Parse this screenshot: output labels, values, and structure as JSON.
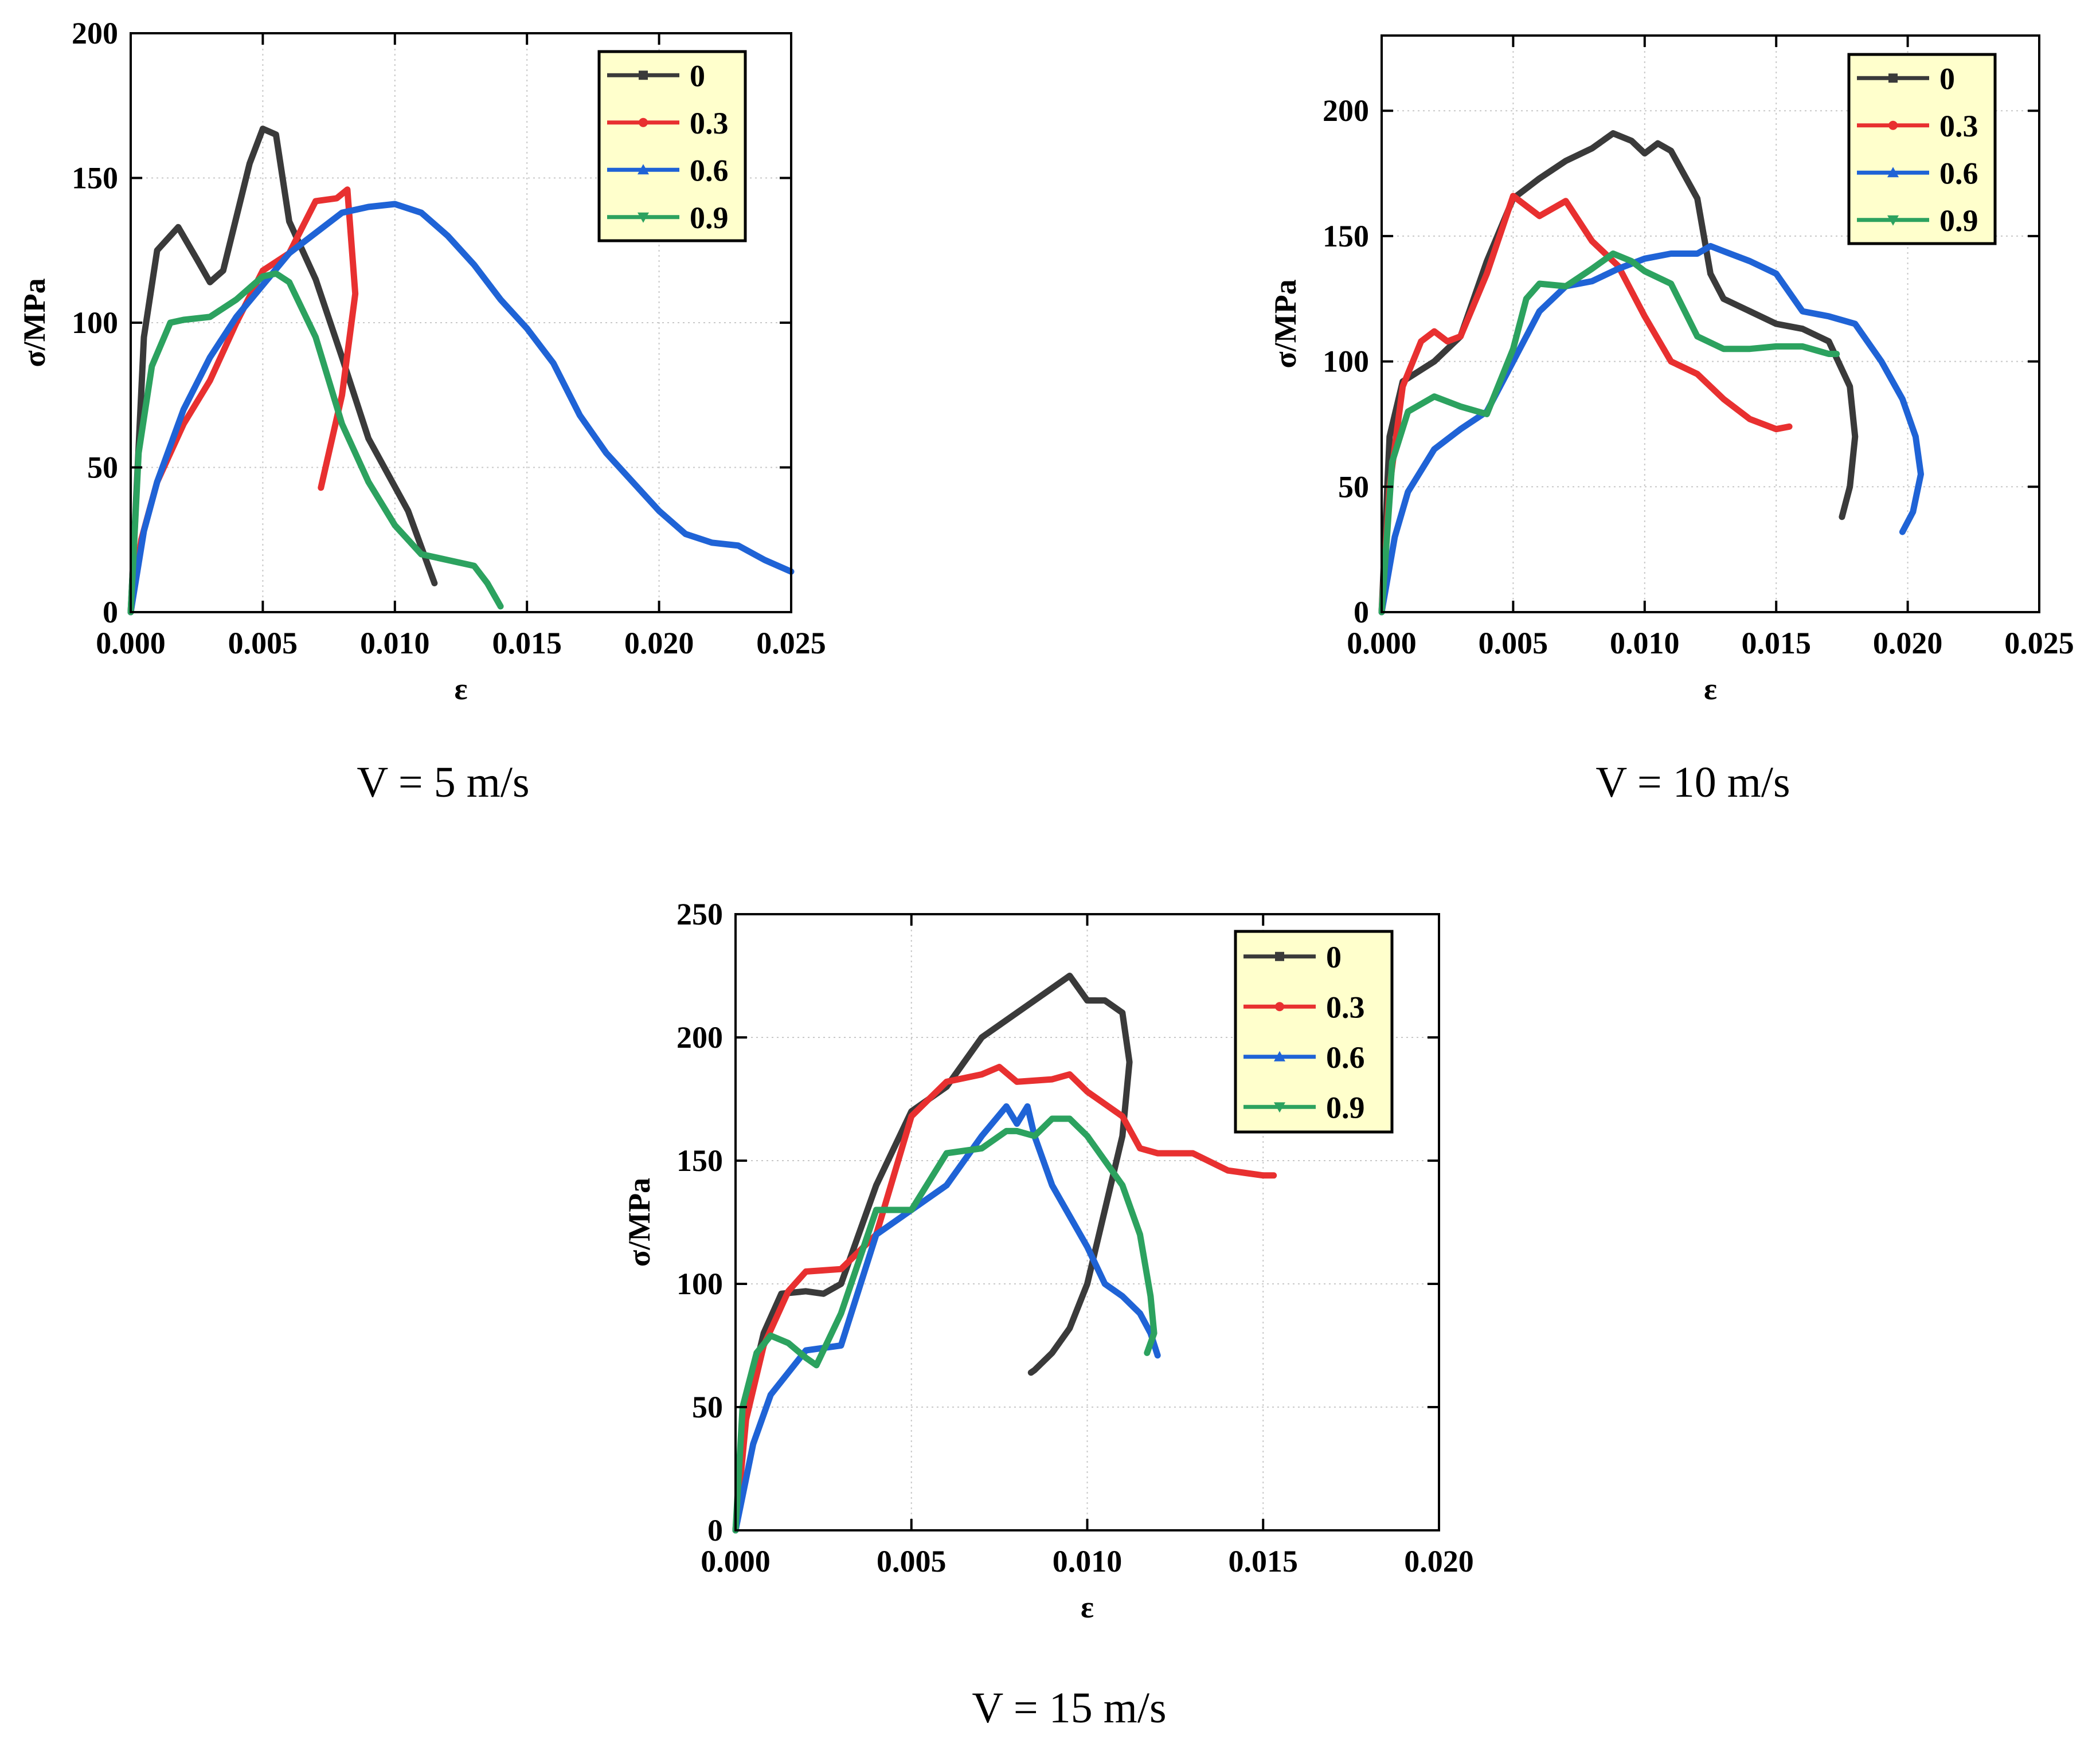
{
  "chart_data": [
    {
      "type": "line",
      "title": "",
      "caption": "V = 5 m/s",
      "xlabel": "ε",
      "ylabel": "σ/MPa",
      "xlim": [
        0,
        0.025
      ],
      "ylim": [
        0,
        200
      ],
      "xticks": [
        "0.000",
        "0.005",
        "0.010",
        "0.015",
        "0.020",
        "0.025"
      ],
      "yticks": [
        "0",
        "50",
        "100",
        "150",
        "200"
      ],
      "legend_location": "top-right",
      "series": [
        {
          "name": "0",
          "color": "#3a3a3a",
          "marker": "square",
          "x": [
            0,
            0.0005,
            0.001,
            0.0018,
            0.0025,
            0.003,
            0.0035,
            0.0045,
            0.005,
            0.0055,
            0.006,
            0.007,
            0.008,
            0.009,
            0.0105,
            0.0115
          ],
          "y": [
            0,
            95,
            125,
            133,
            122,
            114,
            118,
            155,
            167,
            165,
            135,
            115,
            88,
            60,
            35,
            10
          ]
        },
        {
          "name": "0.3",
          "color": "#e83030",
          "marker": "circle",
          "x": [
            0,
            0.0004,
            0.001,
            0.002,
            0.003,
            0.004,
            0.005,
            0.006,
            0.0065,
            0.007,
            0.0078,
            0.0082,
            0.0085,
            0.008,
            0.0075,
            0.0072
          ],
          "y": [
            0,
            25,
            45,
            65,
            80,
            100,
            118,
            124,
            133,
            142,
            143,
            146,
            110,
            75,
            55,
            43
          ]
        },
        {
          "name": "0.6",
          "color": "#1f63d6",
          "marker": "triangle-up",
          "x": [
            0,
            0.0005,
            0.001,
            0.002,
            0.003,
            0.004,
            0.005,
            0.006,
            0.007,
            0.008,
            0.009,
            0.01,
            0.011,
            0.012,
            0.013,
            0.014,
            0.015,
            0.016,
            0.017,
            0.018,
            0.019,
            0.02,
            0.021,
            0.022,
            0.023,
            0.024,
            0.025
          ],
          "y": [
            0,
            28,
            45,
            70,
            88,
            102,
            113,
            124,
            131,
            138,
            140,
            141,
            138,
            130,
            120,
            108,
            98,
            86,
            68,
            55,
            45,
            35,
            27,
            24,
            23,
            18,
            14
          ]
        },
        {
          "name": "0.9",
          "color": "#2ca25f",
          "marker": "triangle-down",
          "x": [
            0,
            0.0003,
            0.0008,
            0.0015,
            0.002,
            0.003,
            0.004,
            0.005,
            0.0055,
            0.006,
            0.007,
            0.008,
            0.009,
            0.01,
            0.011,
            0.012,
            0.013,
            0.0135,
            0.014
          ],
          "y": [
            0,
            55,
            85,
            100,
            101,
            102,
            108,
            116,
            117,
            114,
            95,
            65,
            45,
            30,
            20,
            18,
            16,
            10,
            2
          ]
        }
      ]
    },
    {
      "type": "line",
      "title": "",
      "caption": "V = 10 m/s",
      "xlabel": "ε",
      "ylabel": "σ/MPa",
      "xlim": [
        0,
        0.025
      ],
      "ylim": [
        0,
        230
      ],
      "xticks": [
        "0.000",
        "0.005",
        "0.010",
        "0.015",
        "0.020",
        "0.025"
      ],
      "yticks": [
        "0",
        "50",
        "100",
        "150",
        "200"
      ],
      "legend_location": "top-right",
      "series": [
        {
          "name": "0",
          "color": "#3a3a3a",
          "marker": "square",
          "x": [
            0,
            0.0003,
            0.0008,
            0.002,
            0.003,
            0.004,
            0.005,
            0.006,
            0.007,
            0.008,
            0.0088,
            0.0095,
            0.01,
            0.0105,
            0.011,
            0.012,
            0.0125,
            0.013,
            0.014,
            0.015,
            0.016,
            0.017,
            0.0178,
            0.018,
            0.0178,
            0.0175
          ],
          "y": [
            0,
            70,
            92,
            100,
            110,
            140,
            165,
            173,
            180,
            185,
            191,
            188,
            183,
            187,
            184,
            165,
            135,
            125,
            120,
            115,
            113,
            108,
            90,
            70,
            50,
            38
          ]
        },
        {
          "name": "0.3",
          "color": "#e83030",
          "marker": "circle",
          "x": [
            0,
            0.0003,
            0.0008,
            0.0015,
            0.002,
            0.0025,
            0.003,
            0.004,
            0.005,
            0.006,
            0.007,
            0.008,
            0.009,
            0.01,
            0.011,
            0.012,
            0.013,
            0.014,
            0.015,
            0.0155
          ],
          "y": [
            0,
            50,
            90,
            108,
            112,
            108,
            110,
            135,
            166,
            158,
            164,
            148,
            138,
            118,
            100,
            95,
            85,
            77,
            73,
            74
          ]
        },
        {
          "name": "0.6",
          "color": "#1f63d6",
          "marker": "triangle-up",
          "x": [
            0,
            0.0005,
            0.001,
            0.002,
            0.003,
            0.004,
            0.005,
            0.006,
            0.007,
            0.008,
            0.009,
            0.01,
            0.011,
            0.012,
            0.0125,
            0.013,
            0.014,
            0.015,
            0.016,
            0.017,
            0.018,
            0.019,
            0.0198,
            0.0203,
            0.0205,
            0.0202,
            0.0198
          ],
          "y": [
            0,
            30,
            48,
            65,
            73,
            80,
            100,
            120,
            130,
            132,
            137,
            141,
            143,
            143,
            146,
            144,
            140,
            135,
            120,
            118,
            115,
            100,
            85,
            70,
            55,
            40,
            32
          ]
        },
        {
          "name": "0.9",
          "color": "#2ca25f",
          "marker": "triangle-down",
          "x": [
            0,
            0.0004,
            0.001,
            0.002,
            0.003,
            0.004,
            0.005,
            0.0055,
            0.006,
            0.007,
            0.008,
            0.0088,
            0.0095,
            0.01,
            0.011,
            0.012,
            0.013,
            0.014,
            0.015,
            0.016,
            0.017,
            0.0173
          ],
          "y": [
            0,
            60,
            80,
            86,
            82,
            79,
            105,
            125,
            131,
            130,
            137,
            143,
            140,
            136,
            131,
            110,
            105,
            105,
            106,
            106,
            103,
            103
          ]
        }
      ]
    },
    {
      "type": "line",
      "title": "",
      "caption": "V = 15 m/s",
      "xlabel": "ε",
      "ylabel": "σ/MPa",
      "xlim": [
        0,
        0.02
      ],
      "ylim": [
        0,
        250
      ],
      "xticks": [
        "0.000",
        "0.005",
        "0.010",
        "0.015",
        "0.020"
      ],
      "yticks": [
        "0",
        "50",
        "100",
        "150",
        "200",
        "250"
      ],
      "legend_location": "top-right",
      "series": [
        {
          "name": "0",
          "color": "#3a3a3a",
          "marker": "square",
          "x": [
            0,
            0.0003,
            0.0008,
            0.0013,
            0.002,
            0.0025,
            0.003,
            0.004,
            0.005,
            0.006,
            0.007,
            0.008,
            0.009,
            0.0095,
            0.01,
            0.0105,
            0.011,
            0.0112,
            0.011,
            0.0105,
            0.01,
            0.0095,
            0.009,
            0.0085,
            0.0084
          ],
          "y": [
            0,
            50,
            80,
            96,
            97,
            96,
            100,
            140,
            170,
            180,
            200,
            210,
            220,
            225,
            215,
            215,
            210,
            190,
            160,
            130,
            100,
            82,
            72,
            65,
            64
          ]
        },
        {
          "name": "0.3",
          "color": "#e83030",
          "marker": "circle",
          "x": [
            0,
            0.0003,
            0.0008,
            0.0015,
            0.002,
            0.003,
            0.004,
            0.005,
            0.006,
            0.007,
            0.0075,
            0.008,
            0.009,
            0.0095,
            0.01,
            0.011,
            0.0115,
            0.012,
            0.013,
            0.014,
            0.0145,
            0.015,
            0.0153
          ],
          "y": [
            0,
            45,
            75,
            97,
            105,
            106,
            120,
            168,
            182,
            185,
            188,
            182,
            183,
            185,
            178,
            168,
            155,
            153,
            153,
            146,
            145,
            144,
            144
          ]
        },
        {
          "name": "0.6",
          "color": "#1f63d6",
          "marker": "triangle-up",
          "x": [
            0,
            0.0005,
            0.001,
            0.002,
            0.003,
            0.004,
            0.005,
            0.006,
            0.007,
            0.0077,
            0.008,
            0.0083,
            0.0085,
            0.009,
            0.01,
            0.0105,
            0.011,
            0.0115,
            0.0118,
            0.012
          ],
          "y": [
            0,
            35,
            55,
            73,
            75,
            120,
            130,
            140,
            160,
            172,
            165,
            172,
            160,
            140,
            115,
            100,
            95,
            88,
            80,
            71
          ]
        },
        {
          "name": "0.9",
          "color": "#2ca25f",
          "marker": "triangle-down",
          "x": [
            0,
            0.0002,
            0.0006,
            0.001,
            0.0015,
            0.002,
            0.0023,
            0.003,
            0.004,
            0.005,
            0.006,
            0.007,
            0.0077,
            0.008,
            0.0085,
            0.009,
            0.0095,
            0.01,
            0.011,
            0.0115,
            0.0118,
            0.0119,
            0.0117
          ],
          "y": [
            0,
            50,
            72,
            79,
            76,
            70,
            67,
            88,
            130,
            130,
            153,
            155,
            162,
            162,
            160,
            167,
            167,
            160,
            140,
            120,
            95,
            80,
            72
          ]
        }
      ]
    }
  ]
}
